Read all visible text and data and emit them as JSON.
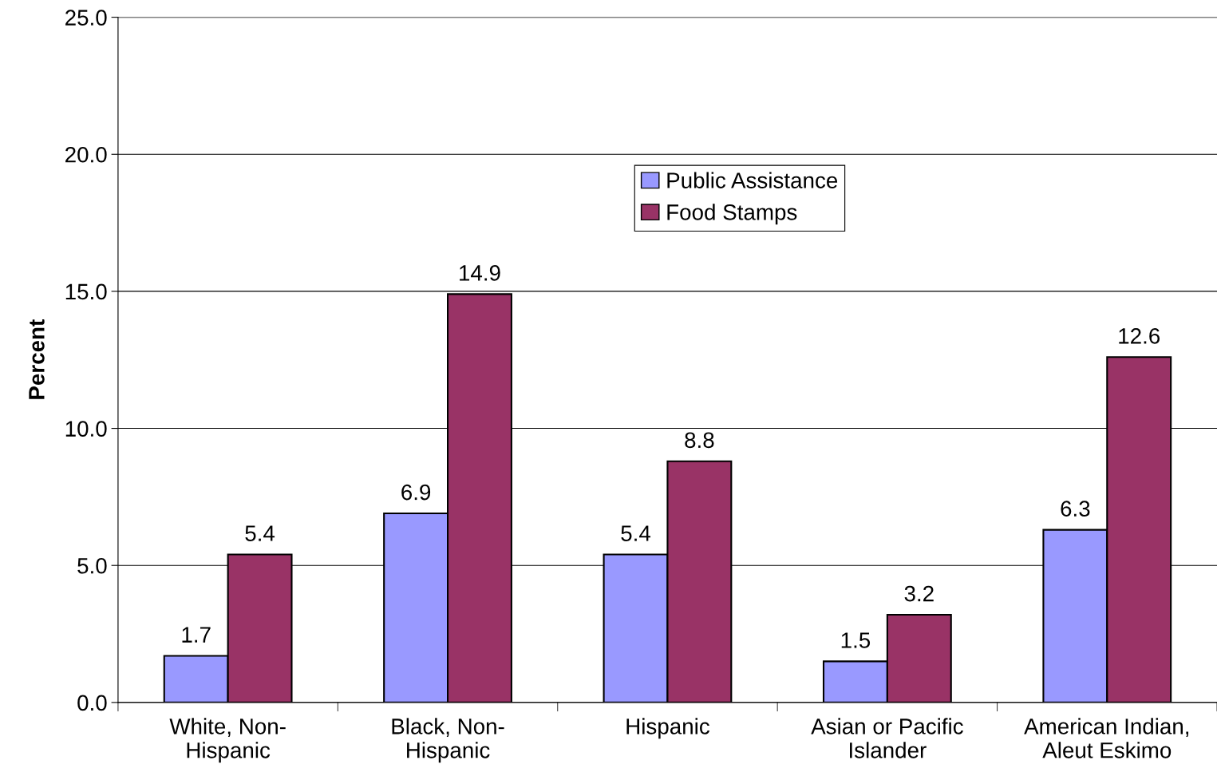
{
  "chart_data": {
    "type": "bar",
    "ylabel": "Percent",
    "categories": [
      "White, Non-\nHispanic",
      "Black, Non-\nHispanic",
      "Hispanic",
      "Asian or Pacific\nIslander",
      "American Indian,\nAleut Eskimo"
    ],
    "series": [
      {
        "name": "Public Assistance",
        "color": "#9999ff",
        "values": [
          1.7,
          6.9,
          5.4,
          1.5,
          6.3
        ]
      },
      {
        "name": "Food Stamps",
        "color": "#993366",
        "values": [
          5.4,
          14.9,
          8.8,
          3.2,
          12.6
        ]
      }
    ],
    "ylim": [
      0,
      25
    ],
    "yticks": [
      {
        "value": 0,
        "label": "0.0"
      },
      {
        "value": 5,
        "label": "5.0"
      },
      {
        "value": 10,
        "label": "10.0"
      },
      {
        "value": 15,
        "label": "15.0"
      },
      {
        "value": 20,
        "label": "20.0"
      },
      {
        "value": 25,
        "label": "25.0"
      }
    ],
    "grid": "y",
    "legend": "top center",
    "data_labels": true
  }
}
